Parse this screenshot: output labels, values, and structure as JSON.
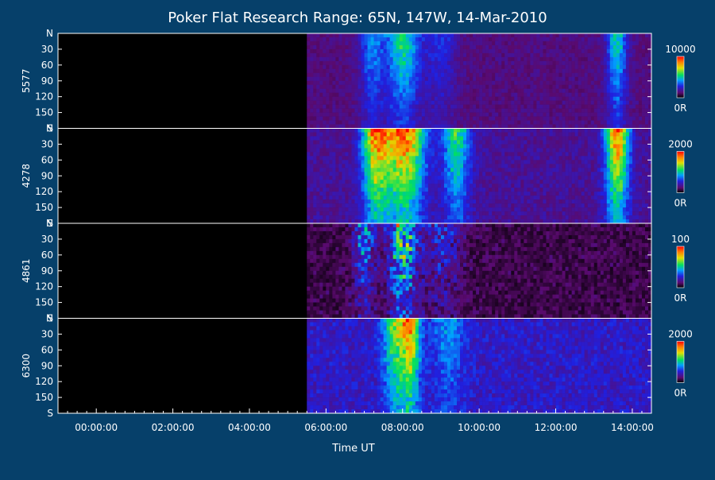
{
  "chart_data": {
    "type": "heatmap",
    "title": "Poker Flat Research Range: 65N, 147W, 14-Mar-2010",
    "xlabel": "Time UT",
    "x_ticks": [
      "00:00:00",
      "02:00:00",
      "04:00:00",
      "06:00:00",
      "08:00:00",
      "10:00:00",
      "12:00:00",
      "14:00:00"
    ],
    "x_tick_hours": [
      0,
      2,
      4,
      6,
      8,
      10,
      12,
      14
    ],
    "xlim_hours": [
      -1.0,
      14.5
    ],
    "data_start_hour": 5.5,
    "y_ticks": [
      "N",
      "30",
      "60",
      "90",
      "120",
      "150",
      "S"
    ],
    "y_tick_values": [
      0,
      30,
      60,
      90,
      120,
      150,
      180
    ],
    "ylim": [
      0,
      180
    ],
    "colorbar_unit_label": "0R",
    "panels": [
      {
        "name": "5577",
        "cmax_label": "10000",
        "events": [
          {
            "t": 7.2,
            "w": 0.3,
            "a": 0.35
          },
          {
            "t": 8.0,
            "w": 0.45,
            "a": 0.55
          },
          {
            "t": 9.0,
            "w": 0.4,
            "a": 0.2
          },
          {
            "t": 13.6,
            "w": 0.25,
            "a": 0.5
          }
        ],
        "base": 0.18
      },
      {
        "name": "4278",
        "cmax_label": "2000",
        "events": [
          {
            "t": 7.3,
            "w": 0.35,
            "a": 0.9
          },
          {
            "t": 8.05,
            "w": 0.5,
            "a": 1.0
          },
          {
            "t": 9.4,
            "w": 0.35,
            "a": 0.55
          },
          {
            "t": 13.6,
            "w": 0.3,
            "a": 0.95
          }
        ],
        "base": 0.22
      },
      {
        "name": "4861",
        "cmax_label": "100",
        "events": [
          {
            "t": 7.0,
            "w": 0.3,
            "a": 0.45
          },
          {
            "t": 8.0,
            "w": 0.35,
            "a": 0.85
          },
          {
            "t": 9.0,
            "w": 0.5,
            "a": 0.3
          }
        ],
        "base": 0.12,
        "noisy": true
      },
      {
        "name": "6300",
        "cmax_label": "2000",
        "events": [
          {
            "t": 7.8,
            "w": 0.3,
            "a": 0.55
          },
          {
            "t": 8.2,
            "w": 0.25,
            "a": 0.75
          },
          {
            "t": 9.2,
            "w": 0.4,
            "a": 0.25
          }
        ],
        "base": 0.3
      }
    ]
  }
}
